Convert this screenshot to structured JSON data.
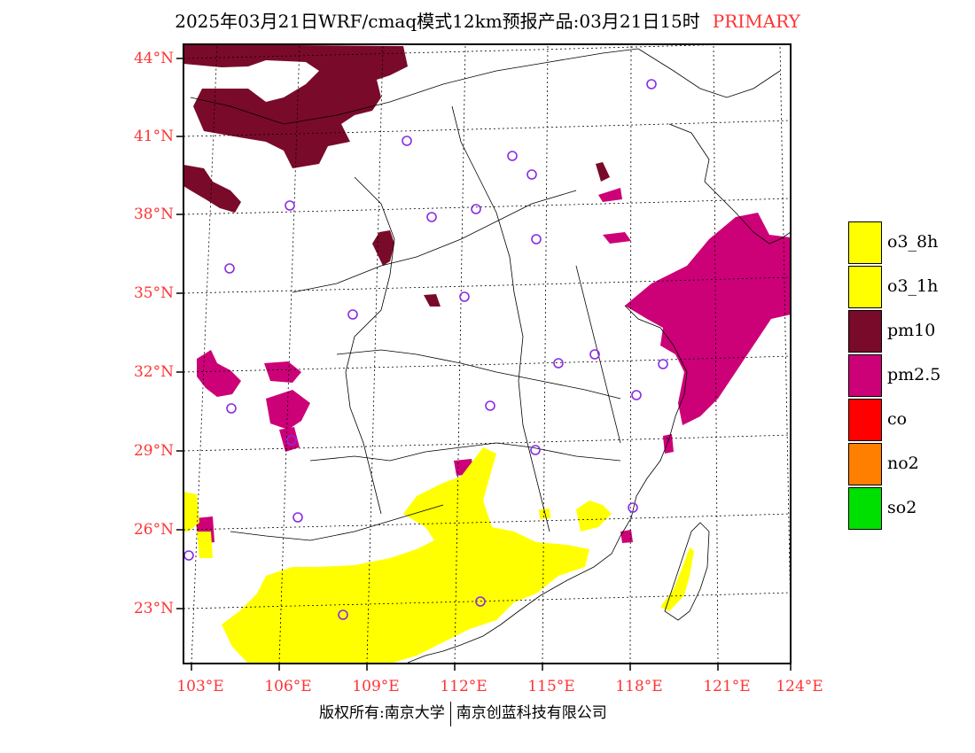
{
  "title": {
    "main": "2025年03月21日WRF/cmaq模式12km预报产品:03月21日15时",
    "tag": "PRIMARY"
  },
  "axes": {
    "lat_labels": [
      "44°N",
      "41°N",
      "38°N",
      "35°N",
      "32°N",
      "29°N",
      "26°N",
      "23°N"
    ],
    "lon_labels": [
      "103°E",
      "106°E",
      "109°E",
      "112°E",
      "115°E",
      "118°E",
      "121°E",
      "124°E"
    ]
  },
  "legend": [
    {
      "label": "o3_8h",
      "color": "#ffff00"
    },
    {
      "label": "o3_1h",
      "color": "#ffff00"
    },
    {
      "label": "pm10",
      "color": "#7a0a2a"
    },
    {
      "label": "pm2.5",
      "color": "#cc0077"
    },
    {
      "label": "co",
      "color": "#ff0000"
    },
    {
      "label": "no2",
      "color": "#ff7f00"
    },
    {
      "label": "so2",
      "color": "#00e000"
    }
  ],
  "footer": {
    "left": "版权所有:南京大学",
    "right": "南京创蓝科技有限公司"
  },
  "colors": {
    "pm10": "#7a0a2a",
    "pm25": "#cc0077",
    "o3": "#ffff00",
    "station_marker": "#8a2be2",
    "axis_label": "#ff3333"
  }
}
